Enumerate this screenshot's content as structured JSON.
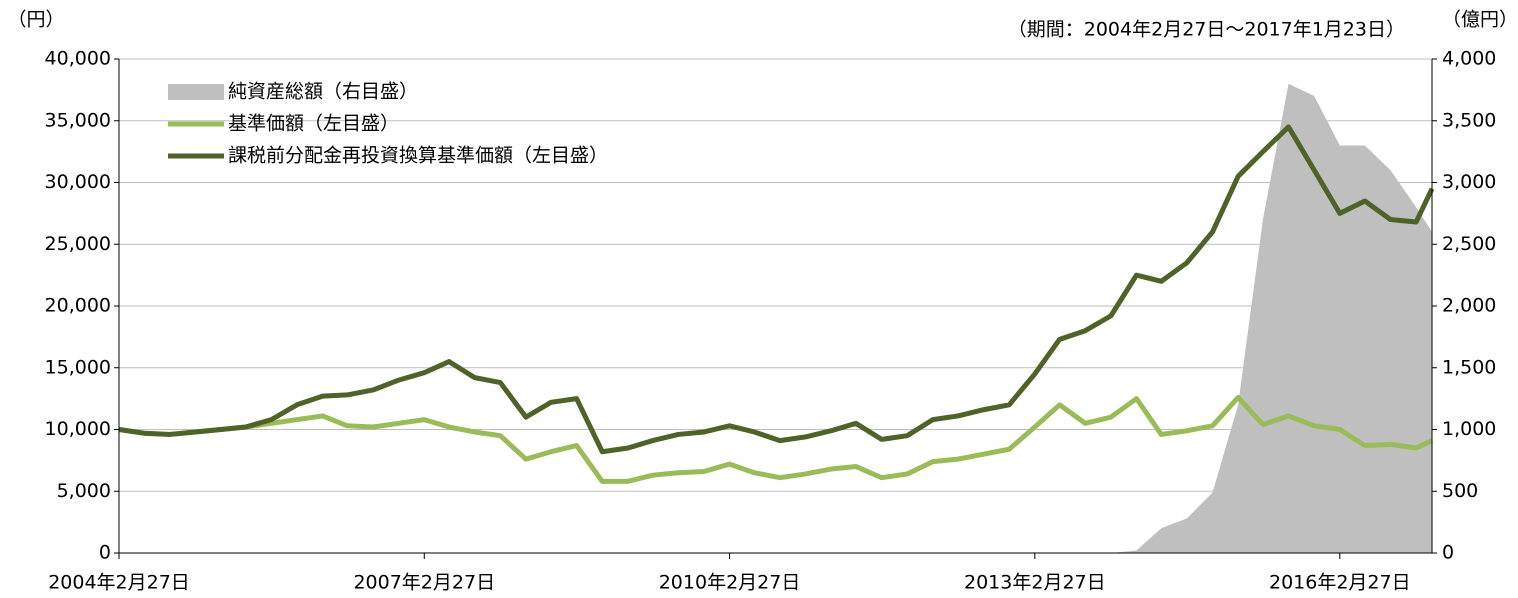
{
  "chart_data": {
    "type": "line",
    "y_label": "（円）",
    "y2_label": "（億円）",
    "subtitle": "（期間：2004年2月27日～2017年1月23日）",
    "x": [
      "2004-02-27",
      "2004-05-27",
      "2004-08-27",
      "2004-11-27",
      "2005-02-27",
      "2005-05-27",
      "2005-08-27",
      "2005-11-27",
      "2006-02-27",
      "2006-05-27",
      "2006-08-27",
      "2006-11-27",
      "2007-02-27",
      "2007-05-27",
      "2007-08-27",
      "2007-11-27",
      "2008-02-27",
      "2008-05-27",
      "2008-08-27",
      "2008-11-27",
      "2009-02-27",
      "2009-05-27",
      "2009-08-27",
      "2009-11-27",
      "2010-02-27",
      "2010-05-27",
      "2010-08-27",
      "2010-11-27",
      "2011-02-27",
      "2011-05-27",
      "2011-08-27",
      "2011-11-27",
      "2012-02-27",
      "2012-05-27",
      "2012-08-27",
      "2012-11-27",
      "2013-02-27",
      "2013-05-27",
      "2013-08-27",
      "2013-11-27",
      "2014-02-27",
      "2014-05-27",
      "2014-08-27",
      "2014-11-27",
      "2015-02-27",
      "2015-05-27",
      "2015-08-27",
      "2015-11-27",
      "2016-02-27",
      "2016-05-27",
      "2016-08-27",
      "2016-11-27",
      "2017-01-23"
    ],
    "series": [
      {
        "name": "純資産総額（右目盛）",
        "color": "#bfbfbf",
        "axis": "y2",
        "kind": "area",
        "values": [
          0,
          0,
          0,
          0,
          0,
          0,
          0,
          0,
          0,
          0,
          0,
          0,
          0,
          0,
          0,
          0,
          0,
          0,
          0,
          0,
          0,
          0,
          0,
          0,
          0,
          0,
          0,
          0,
          0,
          0,
          0,
          0,
          0,
          0,
          0,
          0,
          0,
          0,
          0,
          0,
          20,
          200,
          280,
          490,
          1200,
          2700,
          3800,
          3700,
          3300,
          3300,
          3100,
          2800,
          2600
        ]
      },
      {
        "name": "基準価額（左目盛）",
        "color": "#9bbb59",
        "kind": "line",
        "values": [
          10000,
          9700,
          9600,
          9800,
          10000,
          10200,
          10500,
          10800,
          11100,
          10300,
          10200,
          10500,
          10800,
          10200,
          9800,
          9500,
          7600,
          8200,
          8700,
          5800,
          5800,
          6300,
          6500,
          6600,
          7200,
          6500,
          6100,
          6400,
          6800,
          7000,
          6100,
          6400,
          7400,
          7600,
          8000,
          8400,
          10200,
          12000,
          10500,
          11000,
          12500,
          9600,
          9900,
          10300,
          12600,
          10400,
          11100,
          10300,
          10000,
          8700,
          8800,
          8500,
          9100
        ]
      },
      {
        "name": "課税前分配金再投資換算基準価額（左目盛）",
        "color": "#4f6228",
        "kind": "line",
        "values": [
          10000,
          9700,
          9600,
          9800,
          10000,
          10200,
          10800,
          12000,
          12700,
          12800,
          13200,
          14000,
          14600,
          15500,
          14200,
          13800,
          11000,
          12200,
          12500,
          8200,
          8500,
          9100,
          9600,
          9800,
          10300,
          9800,
          9100,
          9400,
          9900,
          10500,
          9200,
          9500,
          10800,
          11100,
          11600,
          12000,
          14500,
          17300,
          18000,
          19200,
          22500,
          22000,
          23500,
          26000,
          30500,
          32500,
          34500,
          31000,
          27500,
          28500,
          27000,
          26800,
          29500
        ]
      }
    ],
    "xlim": [
      "2004-02-27",
      "2017-01-23"
    ],
    "xticks": [
      {
        "value": "2004-02-27",
        "label": "2004年2月27日"
      },
      {
        "value": "2007-02-27",
        "label": "2007年2月27日"
      },
      {
        "value": "2010-02-27",
        "label": "2010年2月27日"
      },
      {
        "value": "2013-02-27",
        "label": "2013年2月27日"
      },
      {
        "value": "2016-02-27",
        "label": "2016年2月27日"
      }
    ],
    "ylim": [
      0,
      40000
    ],
    "yticks": [
      0,
      {
        "value": 5000,
        "label": "5,000"
      },
      {
        "value": 10000,
        "label": "10,000"
      },
      {
        "value": 15000,
        "label": "15,000"
      },
      {
        "value": 20000,
        "label": "20,000"
      },
      {
        "value": 25000,
        "label": "25,000"
      },
      {
        "value": 30000,
        "label": "30,000"
      },
      {
        "value": 35000,
        "label": "35,000"
      },
      {
        "value": 40000,
        "label": "40,000"
      }
    ],
    "y2lim": [
      0,
      4000
    ],
    "y2ticks": [
      0,
      500,
      {
        "value": 1000,
        "label": "1,000"
      },
      {
        "value": 1500,
        "label": "1,500"
      },
      {
        "value": 2000,
        "label": "2,000"
      },
      {
        "value": 2500,
        "label": "2,500"
      },
      {
        "value": 3000,
        "label": "3,000"
      },
      {
        "value": 3500,
        "label": "3,500"
      },
      {
        "value": 4000,
        "label": "4,000"
      }
    ],
    "grid": true,
    "legend": "upper left"
  }
}
